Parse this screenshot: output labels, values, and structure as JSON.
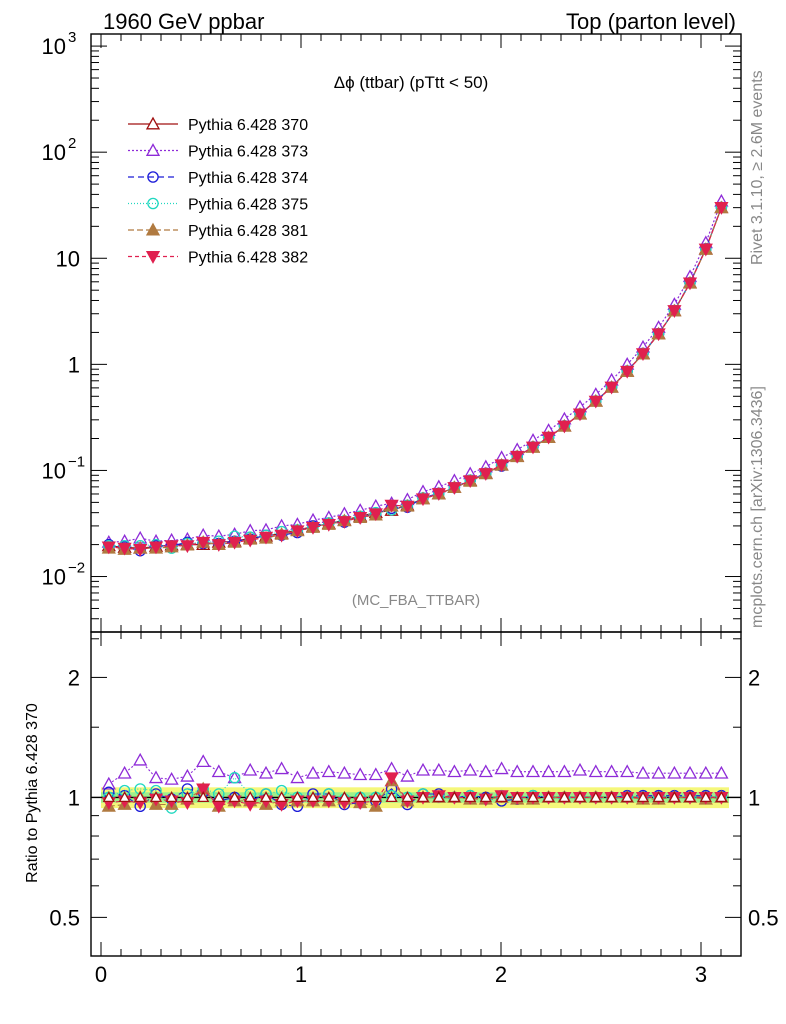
{
  "header": {
    "left": "1960 GeV ppbar",
    "right": "Top (parton level)"
  },
  "side_labels": {
    "rivet": "Rivet 3.1.10, ≥ 2.6M events",
    "mcplots": "mcplots.cern.ch [arXiv:1306.3436]"
  },
  "chart_data": [
    {
      "type": "scatter",
      "title": "Δϕ (ttbar) (pTtt < 50)",
      "subtitle": "(MC_FBA_TTBAR)",
      "y_scale": "log",
      "xlim": [
        -0.05,
        3.2
      ],
      "ylim": [
        0.003,
        1300
      ],
      "x_ticks": [
        {
          "v": 0,
          "label": "0"
        },
        {
          "v": 1,
          "label": "1"
        },
        {
          "v": 2,
          "label": "2"
        },
        {
          "v": 3,
          "label": "3"
        }
      ],
      "y_ticks": [
        {
          "v": 0.01,
          "base": "10",
          "exp": "−2"
        },
        {
          "v": 0.1,
          "base": "10",
          "exp": "−1"
        },
        {
          "v": 1,
          "base": "1",
          "exp": ""
        },
        {
          "v": 10,
          "base": "10",
          "exp": ""
        },
        {
          "v": 100,
          "base": "10",
          "exp": "2"
        },
        {
          "v": 1000,
          "base": "10",
          "exp": "3"
        }
      ],
      "legend_position": "top-left",
      "x": [
        0.039,
        0.118,
        0.196,
        0.275,
        0.353,
        0.432,
        0.511,
        0.589,
        0.668,
        0.746,
        0.825,
        0.903,
        0.982,
        1.06,
        1.139,
        1.217,
        1.296,
        1.374,
        1.453,
        1.532,
        1.61,
        1.689,
        1.767,
        1.846,
        1.924,
        2.003,
        2.081,
        2.16,
        2.238,
        2.317,
        2.395,
        2.474,
        2.553,
        2.631,
        2.71,
        2.788,
        2.867,
        2.945,
        3.024,
        3.102
      ],
      "series": [
        {
          "name": "Pythia 6.428 370",
          "color": "#a01010",
          "marker": "tri-open",
          "dash": "",
          "values": [
            0.0195,
            0.0188,
            0.0185,
            0.0192,
            0.0198,
            0.02,
            0.02,
            0.021,
            0.0215,
            0.023,
            0.024,
            0.0255,
            0.0275,
            0.0295,
            0.0315,
            0.034,
            0.037,
            0.04,
            0.042,
            0.047,
            0.054,
            0.06,
            0.069,
            0.08,
            0.094,
            0.112,
            0.136,
            0.166,
            0.205,
            0.262,
            0.34,
            0.45,
            0.61,
            0.86,
            1.26,
            1.94,
            3.2,
            5.85,
            12.2,
            30.0
          ]
        },
        {
          "name": "Pythia 6.428 373",
          "color": "#8e2bd8",
          "marker": "tri-open",
          "dash": "2,2",
          "values": [
            0.021,
            0.0215,
            0.023,
            0.0215,
            0.022,
            0.0225,
            0.0245,
            0.024,
            0.025,
            0.027,
            0.0275,
            0.03,
            0.031,
            0.034,
            0.036,
            0.039,
            0.042,
            0.046,
            0.049,
            0.053,
            0.063,
            0.07,
            0.08,
            0.093,
            0.108,
            0.132,
            0.157,
            0.192,
            0.238,
            0.305,
            0.397,
            0.52,
            0.71,
            1.0,
            1.45,
            2.23,
            3.67,
            6.7,
            14.0,
            34.5
          ]
        },
        {
          "name": "Pythia 6.428 374",
          "color": "#1c1cd8",
          "marker": "circle-open",
          "dash": "6,4",
          "values": [
            0.02,
            0.019,
            0.0175,
            0.0195,
            0.0195,
            0.021,
            0.0205,
            0.0205,
            0.0215,
            0.0225,
            0.0245,
            0.0245,
            0.026,
            0.03,
            0.032,
            0.0325,
            0.036,
            0.039,
            0.044,
            0.045,
            0.055,
            0.061,
            0.069,
            0.081,
            0.094,
            0.11,
            0.135,
            0.167,
            0.205,
            0.263,
            0.34,
            0.452,
            0.61,
            0.865,
            1.27,
            1.95,
            3.22,
            5.88,
            12.3,
            30.2
          ]
        },
        {
          "name": "Pythia 6.428 375",
          "color": "#20d8c0",
          "marker": "circle-open",
          "dash": "1,2",
          "values": [
            0.0195,
            0.0195,
            0.0195,
            0.02,
            0.0185,
            0.0205,
            0.021,
            0.0215,
            0.024,
            0.0235,
            0.0245,
            0.0265,
            0.0275,
            0.029,
            0.032,
            0.0335,
            0.037,
            0.04,
            0.0425,
            0.047,
            0.055,
            0.06,
            0.069,
            0.081,
            0.093,
            0.113,
            0.136,
            0.167,
            0.205,
            0.263,
            0.341,
            0.451,
            0.611,
            0.862,
            1.26,
            1.94,
            3.21,
            5.87,
            12.2,
            30.1
          ]
        },
        {
          "name": "Pythia 6.428 381",
          "color": "#b07a40",
          "marker": "tri-filled",
          "dash": "6,3",
          "values": [
            0.0185,
            0.018,
            0.0185,
            0.0185,
            0.019,
            0.0198,
            0.021,
            0.02,
            0.021,
            0.0225,
            0.023,
            0.025,
            0.027,
            0.029,
            0.031,
            0.0335,
            0.036,
            0.038,
            0.046,
            0.046,
            0.054,
            0.06,
            0.069,
            0.079,
            0.093,
            0.112,
            0.135,
            0.165,
            0.204,
            0.261,
            0.339,
            0.449,
            0.608,
            0.858,
            1.25,
            1.93,
            3.19,
            5.83,
            12.1,
            29.9
          ]
        },
        {
          "name": "Pythia 6.428 382",
          "color": "#e0204f",
          "marker": "tri-down-filled",
          "dash": "4,3",
          "values": [
            0.019,
            0.0185,
            0.018,
            0.019,
            0.0195,
            0.0195,
            0.021,
            0.02,
            0.021,
            0.022,
            0.0235,
            0.0245,
            0.027,
            0.029,
            0.031,
            0.033,
            0.036,
            0.039,
            0.047,
            0.046,
            0.054,
            0.0605,
            0.069,
            0.08,
            0.0935,
            0.113,
            0.136,
            0.166,
            0.206,
            0.262,
            0.341,
            0.45,
            0.61,
            0.86,
            1.26,
            1.94,
            3.21,
            5.86,
            12.2,
            30.1
          ]
        }
      ]
    },
    {
      "type": "scatter",
      "ylabel": "Ratio to Pythia 6.428 370",
      "y_scale": "log",
      "xlim": [
        -0.05,
        3.2
      ],
      "ylim": [
        0.4,
        2.6
      ],
      "x_ticks": [
        {
          "v": 0,
          "label": "0"
        },
        {
          "v": 1,
          "label": "1"
        },
        {
          "v": 2,
          "label": "2"
        },
        {
          "v": 3,
          "label": "3"
        }
      ],
      "y_ticks": [
        {
          "v": 0.5,
          "label": "0.5"
        },
        {
          "v": 1,
          "label": "1"
        },
        {
          "v": 2,
          "label": "2"
        }
      ],
      "reference_line": 1,
      "uncertainty_band": {
        "inner": 0.03,
        "outer": 0.06
      },
      "series_ratio": [
        {
          "name": "Pythia 6.428 373",
          "values": [
            1.08,
            1.15,
            1.24,
            1.12,
            1.11,
            1.13,
            1.23,
            1.16,
            1.12,
            1.17,
            1.15,
            1.18,
            1.12,
            1.15,
            1.16,
            1.15,
            1.14,
            1.14,
            1.18,
            1.13,
            1.17,
            1.17,
            1.16,
            1.17,
            1.16,
            1.18,
            1.16,
            1.16,
            1.16,
            1.16,
            1.17,
            1.16,
            1.16,
            1.16,
            1.15,
            1.15,
            1.15,
            1.15,
            1.15,
            1.15
          ]
        },
        {
          "name": "Pythia 6.428 374",
          "values": [
            1.03,
            1.01,
            0.95,
            1.02,
            0.99,
            1.05,
            1.03,
            0.98,
            1.0,
            0.98,
            1.02,
            0.96,
            0.95,
            1.02,
            1.02,
            0.96,
            0.97,
            0.98,
            1.05,
            0.96,
            1.02,
            1.02,
            1.0,
            1.01,
            1.0,
            0.98,
            0.99,
            1.01,
            1.0,
            1.0,
            1.0,
            1.0,
            1.0,
            1.01,
            1.01,
            1.01,
            1.01,
            1.01,
            1.01,
            1.01
          ]
        },
        {
          "name": "Pythia 6.428 375",
          "values": [
            1.0,
            1.04,
            1.05,
            1.04,
            0.94,
            1.02,
            1.05,
            1.02,
            1.12,
            1.02,
            1.02,
            1.04,
            1.0,
            0.98,
            1.02,
            0.99,
            1.0,
            1.0,
            1.01,
            1.0,
            1.02,
            1.0,
            1.0,
            1.01,
            0.99,
            1.01,
            1.0,
            1.01,
            1.0,
            1.0,
            1.0,
            1.0,
            1.0,
            1.0,
            1.0,
            1.0,
            1.0,
            1.0,
            1.0,
            1.0
          ]
        },
        {
          "name": "Pythia 6.428 381",
          "values": [
            0.95,
            0.96,
            1.0,
            0.96,
            0.96,
            0.99,
            1.05,
            0.95,
            0.98,
            0.98,
            0.96,
            0.98,
            0.98,
            0.98,
            0.98,
            0.99,
            0.97,
            0.95,
            1.1,
            0.98,
            1.0,
            1.0,
            1.0,
            0.99,
            0.99,
            1.0,
            0.99,
            0.99,
            1.0,
            1.0,
            1.0,
            1.0,
            1.0,
            1.0,
            0.99,
            0.99,
            1.0,
            1.0,
            0.99,
            1.0
          ]
        },
        {
          "name": "Pythia 6.428 382",
          "values": [
            0.97,
            0.98,
            0.97,
            0.99,
            0.98,
            0.97,
            1.05,
            0.95,
            0.98,
            0.96,
            0.98,
            0.96,
            0.98,
            0.98,
            0.98,
            0.97,
            0.97,
            0.98,
            1.12,
            0.98,
            1.0,
            1.01,
            1.0,
            1.0,
            0.99,
            1.01,
            1.0,
            1.0,
            1.0,
            1.0,
            1.0,
            1.0,
            1.0,
            1.0,
            1.0,
            1.0,
            1.0,
            1.0,
            1.0,
            1.0
          ]
        }
      ]
    }
  ]
}
